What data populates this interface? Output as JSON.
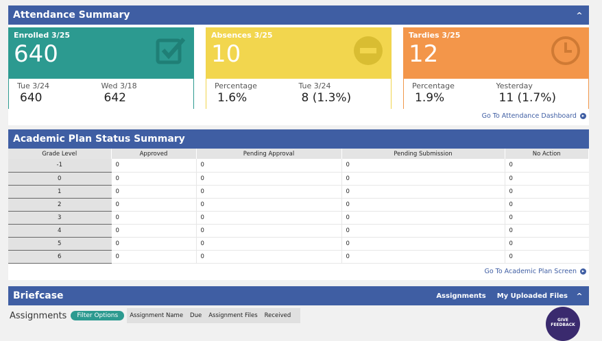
{
  "attendance": {
    "title": "Attendance Summary",
    "cards": [
      {
        "label": "Enrolled 3/25",
        "value": "640",
        "icon": "checkbox-check-icon",
        "left_label": "Tue 3/24",
        "left_value": "640",
        "right_label": "Wed 3/18",
        "right_value": "642"
      },
      {
        "label": "Absences 3/25",
        "value": "10",
        "icon": "minus-circle-icon",
        "left_label": "Percentage",
        "left_value": "1.6%",
        "right_label": "Tue 3/24",
        "right_value": "8 (1.3%)"
      },
      {
        "label": "Tardies 3/25",
        "value": "12",
        "icon": "clock-icon",
        "left_label": "Percentage",
        "left_value": "1.9%",
        "right_label": "Yesterday",
        "right_value": "11 (1.7%)"
      }
    ],
    "link": "Go To Attendance Dashboard"
  },
  "academic": {
    "title": "Academic Plan Status Summary",
    "columns": [
      "Grade Level",
      "Approved",
      "Pending Approval",
      "Pending Submission",
      "No Action"
    ],
    "rows": [
      [
        "-1",
        "0",
        "0",
        "0",
        "0"
      ],
      [
        "0",
        "0",
        "0",
        "0",
        "0"
      ],
      [
        "1",
        "0",
        "0",
        "0",
        "0"
      ],
      [
        "2",
        "0",
        "0",
        "0",
        "0"
      ],
      [
        "3",
        "0",
        "0",
        "0",
        "0"
      ],
      [
        "4",
        "0",
        "0",
        "0",
        "0"
      ],
      [
        "5",
        "0",
        "0",
        "0",
        "0"
      ],
      [
        "6",
        "0",
        "0",
        "0",
        "0"
      ]
    ],
    "link": "Go To Academic Plan Screen"
  },
  "briefcase": {
    "title": "Briefcase",
    "tabs": [
      "Assignments",
      "My Uploaded Files"
    ],
    "section": "Assignments",
    "filter": "Filter Options",
    "columns": [
      "Assignment Name",
      "Due",
      "Assignment Files",
      "Received"
    ]
  },
  "feedback": "GIVE FEEDBACK"
}
